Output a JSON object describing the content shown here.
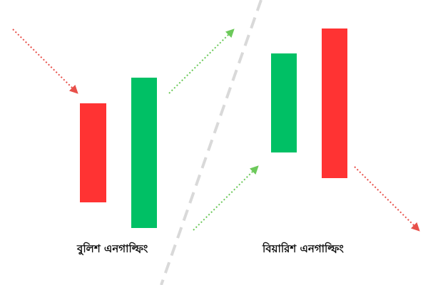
{
  "colors": {
    "bearish_red": "#ff3333",
    "bullish_green": "#00c065",
    "arrow_red": "#e8504a",
    "arrow_green": "#6cc95a",
    "divider_gray": "#d9d9d9"
  },
  "patterns": {
    "bullish": {
      "label": "বুলিশ এনগাল্ফিং",
      "candles": [
        {
          "direction": "bearish",
          "color": "red"
        },
        {
          "direction": "bullish",
          "color": "green"
        }
      ],
      "incoming_trend": "down",
      "outgoing_trend": "up"
    },
    "bearish": {
      "label": "বিয়ারিশ এনগাল্ফিং",
      "candles": [
        {
          "direction": "bullish",
          "color": "green"
        },
        {
          "direction": "bearish",
          "color": "red"
        }
      ],
      "incoming_trend": "up",
      "outgoing_trend": "down"
    }
  },
  "icons": {
    "trend_arrows": [
      "dotted-down-arrow-icon",
      "dotted-up-arrow-icon",
      "dotted-up-arrow-icon",
      "dotted-down-arrow-icon"
    ]
  }
}
